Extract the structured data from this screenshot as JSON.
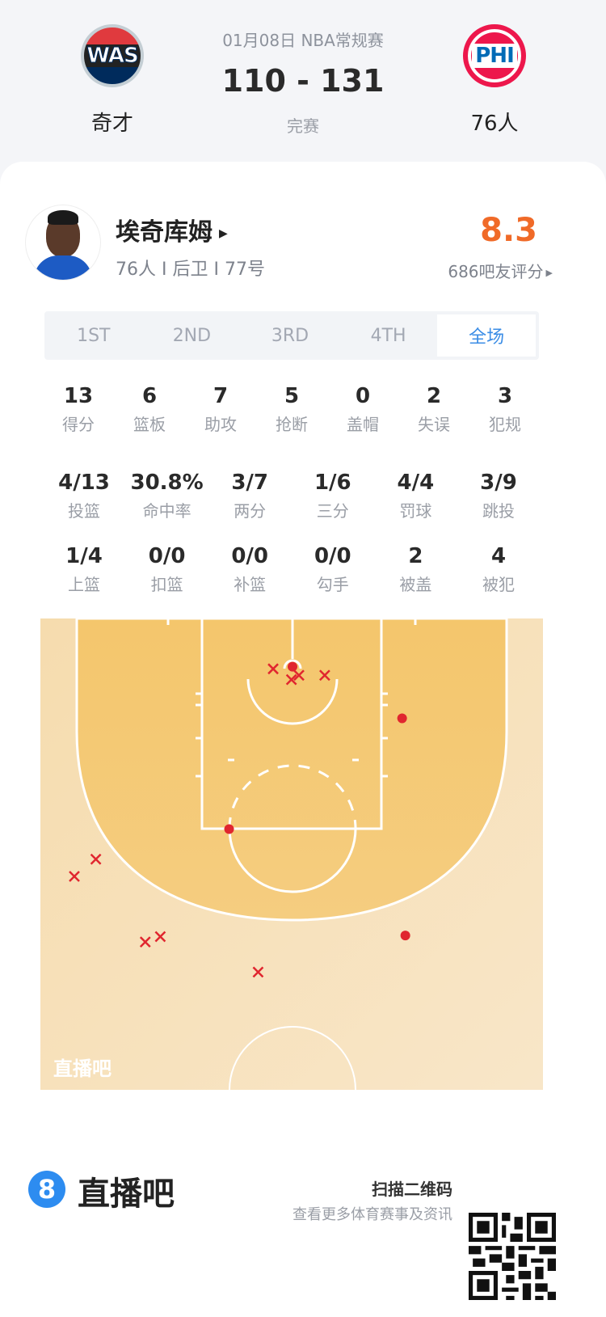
{
  "header": {
    "date_league": "01月08日 NBA常规赛",
    "score": "110 - 131",
    "status": "完赛",
    "home_team": {
      "abbr": "WAS",
      "name": "奇才"
    },
    "away_team": {
      "abbr": "PHI",
      "name": "76人"
    }
  },
  "player": {
    "name": "埃奇库姆",
    "info": "76人 I 后卫 I 77号",
    "rating": "8.3",
    "rating_count": "686吧友评分",
    "rating_color": "#f06a28"
  },
  "tabs": [
    {
      "label": "1ST",
      "active": false
    },
    {
      "label": "2ND",
      "active": false
    },
    {
      "label": "3RD",
      "active": false
    },
    {
      "label": "4TH",
      "active": false
    },
    {
      "label": "全场",
      "active": true
    }
  ],
  "stats_row1": [
    {
      "value": "13",
      "label": "得分"
    },
    {
      "value": "6",
      "label": "篮板"
    },
    {
      "value": "7",
      "label": "助攻"
    },
    {
      "value": "5",
      "label": "抢断"
    },
    {
      "value": "0",
      "label": "盖帽"
    },
    {
      "value": "2",
      "label": "失误"
    },
    {
      "value": "3",
      "label": "犯规"
    }
  ],
  "stats_row2": [
    {
      "value": "4/13",
      "label": "投篮"
    },
    {
      "value": "30.8%",
      "label": "命中率"
    },
    {
      "value": "3/7",
      "label": "两分"
    },
    {
      "value": "1/6",
      "label": "三分"
    },
    {
      "value": "4/4",
      "label": "罚球"
    },
    {
      "value": "3/9",
      "label": "跳投"
    }
  ],
  "stats_row3": [
    {
      "value": "1/4",
      "label": "上篮"
    },
    {
      "value": "0/0",
      "label": "扣篮"
    },
    {
      "value": "0/0",
      "label": "补篮"
    },
    {
      "value": "0/0",
      "label": "勾手"
    },
    {
      "value": "2",
      "label": "被盖"
    },
    {
      "value": "4",
      "label": "被犯"
    }
  ],
  "chart_data": {
    "type": "scatter",
    "made_color": "#e0262f",
    "made": [
      [
        0,
        0.2
      ],
      [
        10.2,
        5.0
      ],
      [
        -5.9,
        15.3
      ],
      [
        10.5,
        25.2
      ]
    ],
    "missed": [
      [
        -1.8,
        0.4
      ],
      [
        -0.1,
        1.4
      ],
      [
        0.6,
        1.0
      ],
      [
        3.0,
        1.0
      ],
      [
        -18.3,
        18.1
      ],
      [
        -20.3,
        19.7
      ],
      [
        -13.7,
        25.8
      ],
      [
        -12.3,
        25.3
      ],
      [
        -3.2,
        28.6
      ]
    ],
    "watermark": "直播吧"
  },
  "footer": {
    "brand": "直播吧",
    "brand_icon": "8",
    "scan_title": "扫描二维码",
    "scan_sub": "查看更多体育赛事及资讯"
  }
}
